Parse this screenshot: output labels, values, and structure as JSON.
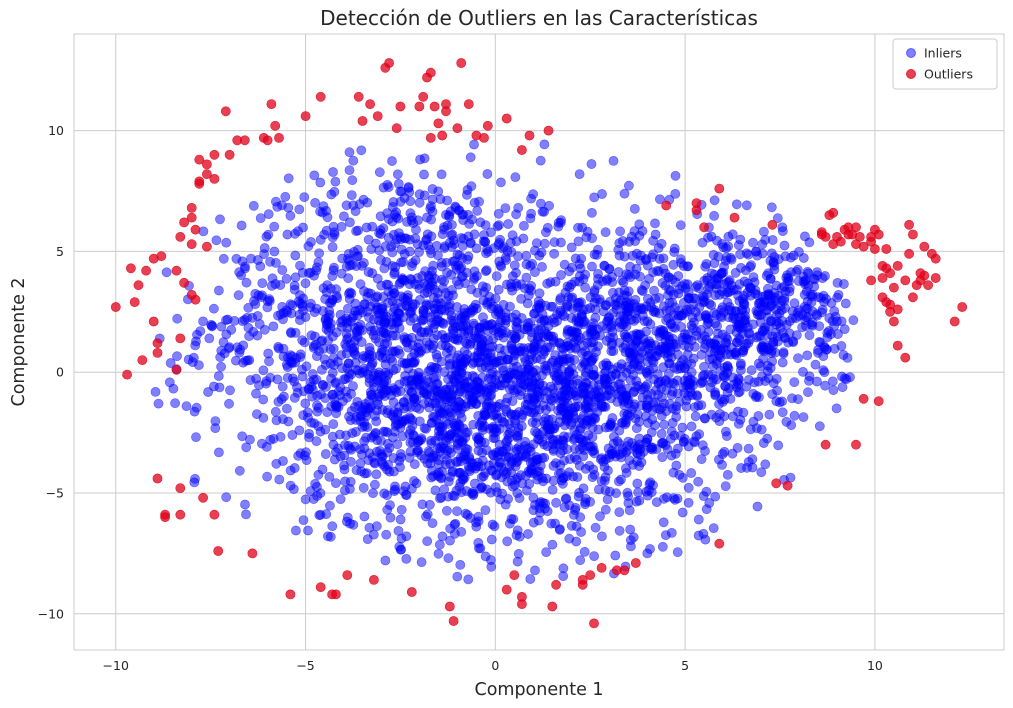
{
  "chart_data": {
    "type": "scatter",
    "title": "Detección de Outliers en las Características",
    "xlabel": "Componente 1",
    "ylabel": "Componente 2",
    "xlim": [
      -11.1,
      13.4
    ],
    "ylim": [
      -11.5,
      14.0
    ],
    "xticks": [
      -10,
      -5,
      0,
      5,
      10
    ],
    "yticks": [
      -10,
      -5,
      0,
      5,
      10
    ],
    "xtick_labels": [
      "−10",
      "−5",
      "0",
      "5",
      "10"
    ],
    "ytick_labels": [
      "−10",
      "−5",
      "0",
      "5",
      "10"
    ],
    "grid": true,
    "legend_position": "top-right",
    "series": [
      {
        "name": "Inliers",
        "color": "#0000ff",
        "alpha": 0.5,
        "clusters": [
          {
            "center": [
              -2.5,
              2.0
            ],
            "spread": [
              2.6,
              3.4
            ],
            "count": 1300
          },
          {
            "center": [
              0.5,
              -2.0
            ],
            "spread": [
              2.8,
              2.8
            ],
            "count": 1300
          },
          {
            "center": [
              4.0,
              1.0
            ],
            "spread": [
              2.0,
              2.4
            ],
            "count": 800
          },
          {
            "center": [
              7.5,
              2.5
            ],
            "spread": [
              1.4,
              1.6
            ],
            "count": 350
          }
        ],
        "bounds": {
          "x": [
            -9.0,
            9.5
          ],
          "y": [
            -8.6,
            9.6
          ]
        }
      },
      {
        "name": "Outliers",
        "color": "#e0001a",
        "alpha": 0.75,
        "points": [
          [
            -10.0,
            2.7
          ],
          [
            -9.7,
            -0.1
          ],
          [
            -9.6,
            4.3
          ],
          [
            -9.5,
            2.9
          ],
          [
            -9.4,
            3.6
          ],
          [
            -9.3,
            0.5
          ],
          [
            -9.2,
            4.2
          ],
          [
            -9.0,
            2.1
          ],
          [
            -8.9,
            1.2
          ],
          [
            -8.9,
            0.8
          ],
          [
            -9.0,
            4.7
          ],
          [
            -8.8,
            4.8
          ],
          [
            -8.7,
            -5.9
          ],
          [
            -8.7,
            -6.0
          ],
          [
            -8.9,
            -4.4
          ],
          [
            -8.3,
            -4.8
          ],
          [
            -8.3,
            -5.9
          ],
          [
            -8.4,
            0.1
          ],
          [
            -8.3,
            1.4
          ],
          [
            -8.2,
            3.7
          ],
          [
            -8.0,
            3.2
          ],
          [
            -8.4,
            4.2
          ],
          [
            -8.3,
            5.6
          ],
          [
            -8.2,
            6.2
          ],
          [
            -8.0,
            6.4
          ],
          [
            -8.0,
            6.8
          ],
          [
            -8.0,
            5.3
          ],
          [
            -7.9,
            5.9
          ],
          [
            -7.8,
            7.8
          ],
          [
            -7.8,
            7.9
          ],
          [
            -7.8,
            8.8
          ],
          [
            -7.6,
            8.6
          ],
          [
            -7.6,
            5.2
          ],
          [
            -7.9,
            3.0
          ],
          [
            -7.7,
            -5.2
          ],
          [
            -7.4,
            -5.9
          ],
          [
            -7.3,
            -7.4
          ],
          [
            -7.6,
            8.2
          ],
          [
            -7.4,
            8.0
          ],
          [
            -7.4,
            9.0
          ],
          [
            -7.1,
            10.8
          ],
          [
            -7.0,
            9.0
          ],
          [
            -6.8,
            9.6
          ],
          [
            -6.6,
            9.6
          ],
          [
            -6.4,
            -7.5
          ],
          [
            -6.1,
            9.7
          ],
          [
            -6.0,
            9.6
          ],
          [
            -5.8,
            10.2
          ],
          [
            -5.9,
            11.1
          ],
          [
            -5.7,
            9.7
          ],
          [
            -5.4,
            -9.2
          ],
          [
            -5.0,
            10.6
          ],
          [
            -4.6,
            -8.9
          ],
          [
            -4.6,
            11.4
          ],
          [
            -4.3,
            -9.2
          ],
          [
            -4.2,
            -9.2
          ],
          [
            -3.9,
            -8.4
          ],
          [
            -3.6,
            11.4
          ],
          [
            -3.5,
            10.4
          ],
          [
            -3.3,
            11.1
          ],
          [
            -3.2,
            -8.6
          ],
          [
            -3.1,
            10.6
          ],
          [
            -2.9,
            12.6
          ],
          [
            -2.8,
            12.8
          ],
          [
            -2.6,
            10.1
          ],
          [
            -2.5,
            11.0
          ],
          [
            -2.2,
            -9.1
          ],
          [
            -2.0,
            11.0
          ],
          [
            -1.9,
            11.4
          ],
          [
            -1.8,
            12.2
          ],
          [
            -1.7,
            12.4
          ],
          [
            -1.7,
            9.7
          ],
          [
            -1.6,
            11.0
          ],
          [
            -1.5,
            10.3
          ],
          [
            -1.4,
            9.8
          ],
          [
            -1.3,
            11.1
          ],
          [
            -1.3,
            10.8
          ],
          [
            -1.2,
            -9.7
          ],
          [
            -1.1,
            -10.3
          ],
          [
            -1.0,
            10.1
          ],
          [
            -0.9,
            12.8
          ],
          [
            -0.7,
            11.1
          ],
          [
            -0.5,
            9.8
          ],
          [
            -0.3,
            9.7
          ],
          [
            -0.2,
            10.2
          ],
          [
            0.3,
            10.5
          ],
          [
            0.3,
            -9.0
          ],
          [
            0.5,
            -8.4
          ],
          [
            0.7,
            -9.6
          ],
          [
            0.7,
            -9.3
          ],
          [
            0.7,
            9.2
          ],
          [
            0.9,
            9.8
          ],
          [
            1.4,
            10.0
          ],
          [
            1.6,
            -8.8
          ],
          [
            1.5,
            -9.7
          ],
          [
            2.3,
            -8.6
          ],
          [
            2.3,
            -8.8
          ],
          [
            2.5,
            -8.4
          ],
          [
            2.6,
            -10.4
          ],
          [
            2.8,
            -8.1
          ],
          [
            3.2,
            -8.2
          ],
          [
            3.4,
            -8.2
          ],
          [
            3.7,
            -7.9
          ],
          [
            4.5,
            6.9
          ],
          [
            5.3,
            6.7
          ],
          [
            5.3,
            7.0
          ],
          [
            5.5,
            6.0
          ],
          [
            5.9,
            -7.1
          ],
          [
            5.9,
            7.6
          ],
          [
            6.3,
            6.4
          ],
          [
            7.3,
            6.1
          ],
          [
            7.4,
            -4.6
          ],
          [
            7.7,
            -4.7
          ],
          [
            8.6,
            5.8
          ],
          [
            8.7,
            5.6
          ],
          [
            8.8,
            6.5
          ],
          [
            8.9,
            6.6
          ],
          [
            8.9,
            5.3
          ],
          [
            9.0,
            5.6
          ],
          [
            9.1,
            5.4
          ],
          [
            9.2,
            5.9
          ],
          [
            9.3,
            6.0
          ],
          [
            9.3,
            5.7
          ],
          [
            9.4,
            5.7
          ],
          [
            9.5,
            6.0
          ],
          [
            9.5,
            5.3
          ],
          [
            9.6,
            5.6
          ],
          [
            9.7,
            -1.1
          ],
          [
            9.7,
            5.2
          ],
          [
            9.9,
            5.4
          ],
          [
            10.0,
            5.1
          ],
          [
            10.1,
            -1.2
          ],
          [
            10.1,
            5.7
          ],
          [
            10.2,
            3.9
          ],
          [
            10.2,
            4.4
          ],
          [
            10.3,
            4.3
          ],
          [
            10.3,
            5.1
          ],
          [
            10.4,
            4.1
          ],
          [
            10.4,
            2.8
          ],
          [
            10.5,
            3.5
          ],
          [
            10.5,
            2.1
          ],
          [
            10.6,
            4.4
          ],
          [
            10.6,
            2.6
          ],
          [
            10.6,
            1.1
          ],
          [
            10.8,
            3.8
          ],
          [
            10.8,
            0.6
          ],
          [
            10.9,
            4.9
          ],
          [
            11.0,
            3.1
          ],
          [
            11.1,
            3.6
          ],
          [
            11.2,
            3.8
          ],
          [
            11.2,
            4.1
          ],
          [
            11.3,
            4.0
          ],
          [
            11.4,
            3.6
          ],
          [
            11.5,
            4.9
          ],
          [
            11.6,
            4.7
          ],
          [
            12.1,
            2.1
          ],
          [
            12.3,
            2.7
          ],
          [
            8.7,
            -3.0
          ],
          [
            9.5,
            -3.0
          ],
          [
            10.3,
            2.9
          ],
          [
            10.4,
            2.5
          ],
          [
            10.2,
            3.1
          ],
          [
            9.9,
            3.8
          ],
          [
            11.3,
            5.2
          ],
          [
            11.6,
            3.9
          ],
          [
            10.9,
            6.1
          ],
          [
            11.0,
            5.7
          ],
          [
            9.9,
            5.6
          ],
          [
            10.0,
            5.9
          ],
          [
            8.6,
            5.7
          ]
        ]
      }
    ]
  }
}
